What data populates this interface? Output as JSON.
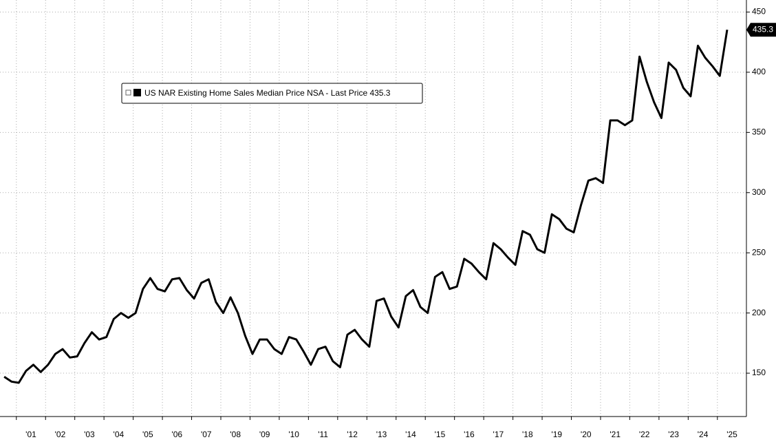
{
  "chart_data": {
    "type": "line",
    "categories": [
      null,
      null,
      null,
      "'01",
      null,
      null,
      null,
      "'02",
      null,
      null,
      null,
      "'03",
      null,
      null,
      null,
      "'04",
      null,
      null,
      null,
      "'05",
      null,
      null,
      null,
      "'06",
      null,
      null,
      null,
      "'07",
      null,
      null,
      null,
      "'08",
      null,
      null,
      null,
      "'09",
      null,
      null,
      null,
      "'10",
      null,
      null,
      null,
      "'11",
      null,
      null,
      null,
      "'12",
      null,
      null,
      null,
      "'13",
      null,
      null,
      null,
      "'14",
      null,
      null,
      null,
      "'15",
      null,
      null,
      null,
      "'16",
      null,
      null,
      null,
      "'17",
      null,
      null,
      null,
      "'18",
      null,
      null,
      null,
      "'19",
      null,
      null,
      null,
      "'20",
      null,
      null,
      null,
      "'21",
      null,
      null,
      null,
      "'22",
      null,
      null,
      null,
      "'23",
      null,
      null,
      null,
      "'24",
      null,
      null,
      null,
      "'25"
    ],
    "series": [
      {
        "name": "US NAR Existing Home Sales Median Price NSA - Last Price 435.3",
        "color": "#000000",
        "values": [
          147,
          143,
          142,
          152,
          157,
          151,
          157,
          166,
          170,
          163,
          164,
          175,
          184,
          178,
          180,
          195,
          200,
          196,
          200,
          220,
          229,
          220,
          218,
          228,
          229,
          219,
          212,
          225,
          228,
          209,
          200,
          213,
          200,
          181,
          166,
          178,
          178,
          170,
          166,
          180,
          178,
          168,
          157,
          170,
          172,
          160,
          155,
          182,
          186,
          178,
          172,
          210,
          212,
          197,
          188,
          214,
          219,
          205,
          200,
          230,
          234,
          220,
          222,
          245,
          241,
          234,
          228,
          258,
          253,
          246,
          240,
          268,
          265,
          253,
          250,
          282,
          278,
          270,
          267,
          290,
          310,
          312,
          308,
          360,
          360,
          356,
          360,
          413,
          392,
          375,
          362,
          408,
          402,
          387,
          380,
          422,
          412,
          405,
          397,
          435.3
        ]
      }
    ],
    "ylim": [
      114,
      460
    ],
    "yticks": [
      150,
      200,
      250,
      300,
      350,
      400,
      450
    ],
    "grid": true
  }
}
